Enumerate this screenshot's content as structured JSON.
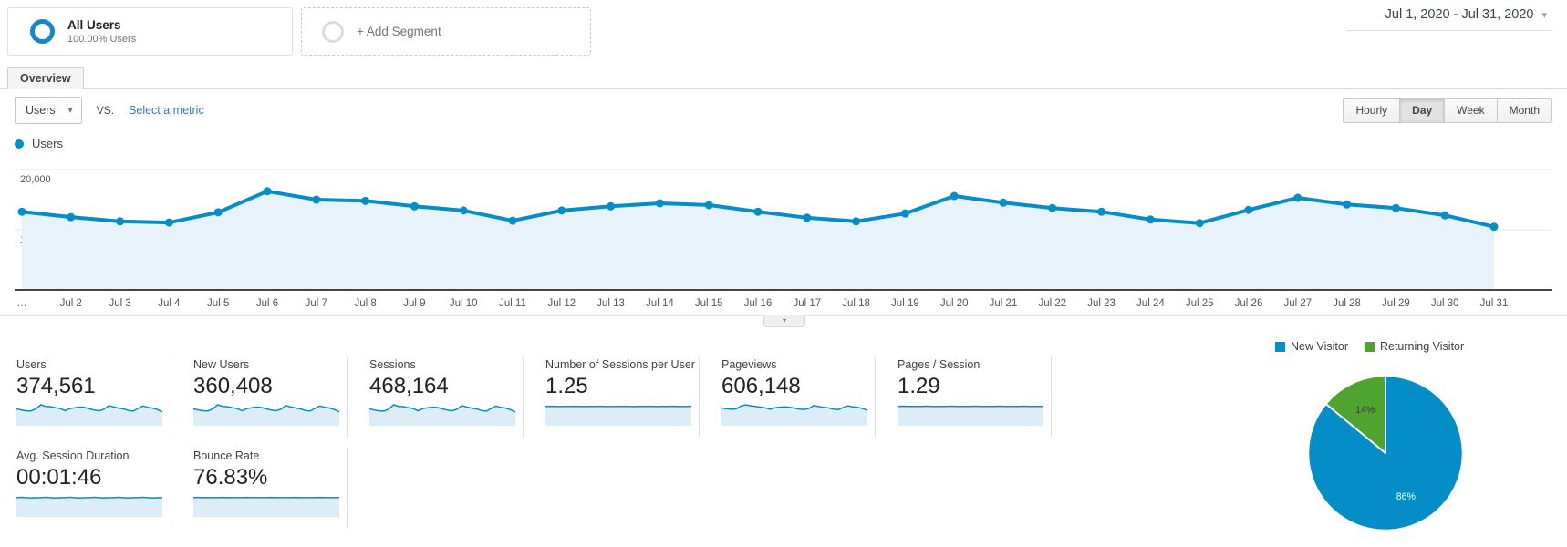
{
  "colors": {
    "accent_blue": "#058dc7",
    "chart_area_fill": "#e7f2fa",
    "spark_fill": "#ddedf8",
    "pie_green": "#4fa32f",
    "link_blue": "#4374ad",
    "axis_line": "#454545"
  },
  "icons": {
    "caret_down": "▾",
    "segment_icon": "ring",
    "add_segment_icon": "ring-gray",
    "handle_chevron": "▾"
  },
  "header": {
    "segment_card": {
      "title": "All Users",
      "subtitle": "100.00% Users"
    },
    "add_segment": {
      "label": "+ Add Segment"
    },
    "date_range": {
      "label": "Jul 1, 2020 - Jul 31, 2020"
    }
  },
  "tab_bar": {
    "overview_label": "Overview"
  },
  "controls": {
    "metric_select": {
      "value": "Users"
    },
    "vs_label": "vs.",
    "compare_link_label": "Select a metric",
    "granularity": {
      "options": [
        "Hourly",
        "Day",
        "Week",
        "Month"
      ],
      "selected": "Day"
    }
  },
  "timeseries_legend": {
    "label": "Users"
  },
  "chart_data": [
    {
      "type": "line",
      "name": "users-over-time",
      "series_name": "Users",
      "x": [
        "Jul 1",
        "Jul 2",
        "Jul 3",
        "Jul 4",
        "Jul 5",
        "Jul 6",
        "Jul 7",
        "Jul 8",
        "Jul 9",
        "Jul 10",
        "Jul 11",
        "Jul 12",
        "Jul 13",
        "Jul 14",
        "Jul 15",
        "Jul 16",
        "Jul 17",
        "Jul 18",
        "Jul 19",
        "Jul 20",
        "Jul 21",
        "Jul 22",
        "Jul 23",
        "Jul 24",
        "Jul 25",
        "Jul 26",
        "Jul 27",
        "Jul 28",
        "Jul 29",
        "Jul 30",
        "Jul 31"
      ],
      "x_tick_labels": [
        "…",
        "Jul 2",
        "Jul 3",
        "Jul 4",
        "Jul 5",
        "Jul 6",
        "Jul 7",
        "Jul 8",
        "Jul 9",
        "Jul 10",
        "Jul 11",
        "Jul 12",
        "Jul 13",
        "Jul 14",
        "Jul 15",
        "Jul 16",
        "Jul 17",
        "Jul 18",
        "Jul 19",
        "Jul 20",
        "Jul 21",
        "Jul 22",
        "Jul 23",
        "Jul 24",
        "Jul 25",
        "Jul 26",
        "Jul 27",
        "Jul 28",
        "Jul 29",
        "Jul 30",
        "Jul 31"
      ],
      "values": [
        13000,
        12100,
        11400,
        11200,
        12900,
        16400,
        15000,
        14800,
        13900,
        13200,
        11500,
        13200,
        13900,
        14400,
        14100,
        13000,
        12000,
        11400,
        12700,
        15600,
        14500,
        13600,
        13000,
        11700,
        11100,
        13300,
        15300,
        14200,
        13600,
        12400,
        10500
      ],
      "ylim": [
        0,
        22700
      ],
      "yticks": [
        {
          "value": 10000,
          "label": "10,000"
        },
        {
          "value": 20000,
          "label": "20,000"
        }
      ],
      "grid": true,
      "area": true,
      "markers": true
    },
    {
      "type": "pie",
      "name": "new-vs-returning-visitors",
      "legend_position": "top",
      "slices": [
        {
          "label": "New Visitor",
          "pct": 86,
          "pct_label": "86%",
          "color": "#058dc7",
          "label_color": "#ffffff"
        },
        {
          "label": "Returning Visitor",
          "pct": 14,
          "pct_label": "14%",
          "color": "#4fa32f",
          "label_color": "#3d3d3d"
        }
      ]
    }
  ],
  "scorecards": {
    "row1": [
      {
        "label": "Users",
        "value": "374,561",
        "spark": "wiggle_a"
      },
      {
        "label": "New Users",
        "value": "360,408",
        "spark": "wiggle_b"
      },
      {
        "label": "Sessions",
        "value": "468,164",
        "spark": "wiggle_c"
      },
      {
        "label": "Number of Sessions per User",
        "value": "1.25",
        "spark": "flat_a"
      },
      {
        "label": "Pageviews",
        "value": "606,148",
        "spark": "wiggle_d"
      },
      {
        "label": "Pages / Session",
        "value": "1.29",
        "spark": "flat_b"
      }
    ],
    "row2": [
      {
        "label": "Avg. Session Duration",
        "value": "00:01:46",
        "spark": "flat_c"
      },
      {
        "label": "Bounce Rate",
        "value": "76.83%",
        "spark": "flat_d"
      }
    ],
    "sparklines": {
      "wiggle_a": {
        "ymax": 17000,
        "values": [
          13000,
          12100,
          11400,
          11200,
          12900,
          16400,
          15000,
          14800,
          13900,
          13200,
          11500,
          13200,
          13900,
          14400,
          14100,
          13000,
          12000,
          11400,
          12700,
          15600,
          14500,
          13600,
          13000,
          11700,
          11100,
          13300,
          15300,
          14200,
          13600,
          12400,
          10500
        ]
      },
      "wiggle_b": {
        "ymax": 16300,
        "values": [
          12500,
          11600,
          11000,
          10800,
          12400,
          15700,
          14400,
          14200,
          13300,
          12700,
          11000,
          12700,
          13300,
          13800,
          13500,
          12500,
          11500,
          11000,
          12200,
          15000,
          13900,
          13100,
          12500,
          11200,
          10700,
          12800,
          14700,
          13600,
          13100,
          11900,
          10100
        ]
      },
      "wiggle_c": {
        "ymax": 21300,
        "values": [
          16300,
          15100,
          14300,
          14000,
          16100,
          20500,
          18800,
          18500,
          17400,
          16500,
          14400,
          16500,
          17400,
          18000,
          17600,
          16300,
          15000,
          14300,
          15900,
          19500,
          18100,
          17000,
          16300,
          14600,
          13900,
          16600,
          19100,
          17800,
          17000,
          15500,
          13100
        ]
      },
      "wiggle_d": {
        "ymax": 21800,
        "values": [
          17500,
          16800,
          16200,
          16500,
          19500,
          21000,
          19800,
          19200,
          18400,
          17600,
          16200,
          17800,
          18400,
          18800,
          18300,
          17400,
          16400,
          16000,
          17200,
          20200,
          19000,
          18200,
          17600,
          16300,
          15800,
          17900,
          19800,
          18800,
          18300,
          17000,
          15200
        ]
      },
      "flat_a": {
        "ymax": 1.42,
        "values": [
          1.25,
          1.26,
          1.25,
          1.24,
          1.25,
          1.25,
          1.26,
          1.25,
          1.24,
          1.25,
          1.25,
          1.26,
          1.25,
          1.24,
          1.25,
          1.25,
          1.26,
          1.25,
          1.24,
          1.25,
          1.25,
          1.26,
          1.25,
          1.24,
          1.25,
          1.25,
          1.26,
          1.25,
          1.24,
          1.25,
          1.25
        ]
      },
      "flat_b": {
        "ymax": 1.46,
        "values": [
          1.29,
          1.3,
          1.29,
          1.28,
          1.29,
          1.29,
          1.3,
          1.29,
          1.28,
          1.29,
          1.29,
          1.3,
          1.29,
          1.28,
          1.29,
          1.29,
          1.3,
          1.29,
          1.28,
          1.29,
          1.29,
          1.3,
          1.29,
          1.28,
          1.29,
          1.29,
          1.3,
          1.29,
          1.28,
          1.29,
          1.29
        ]
      },
      "flat_c": {
        "ymax": 121,
        "values": [
          106,
          108,
          106,
          104,
          106,
          106,
          108,
          106,
          104,
          106,
          106,
          108,
          106,
          104,
          106,
          106,
          108,
          106,
          104,
          106,
          106,
          108,
          106,
          104,
          106,
          106,
          108,
          106,
          104,
          106,
          105
        ]
      },
      "flat_d": {
        "ymax": 87,
        "values": [
          76.8,
          77.1,
          76.8,
          76.5,
          76.8,
          76.8,
          77.1,
          76.8,
          76.5,
          76.8,
          76.8,
          77.1,
          76.8,
          76.5,
          76.8,
          76.8,
          77.1,
          76.8,
          76.5,
          76.8,
          76.8,
          77.1,
          76.8,
          76.5,
          76.8,
          76.8,
          77.1,
          76.8,
          76.5,
          76.8,
          76.8
        ]
      }
    }
  }
}
